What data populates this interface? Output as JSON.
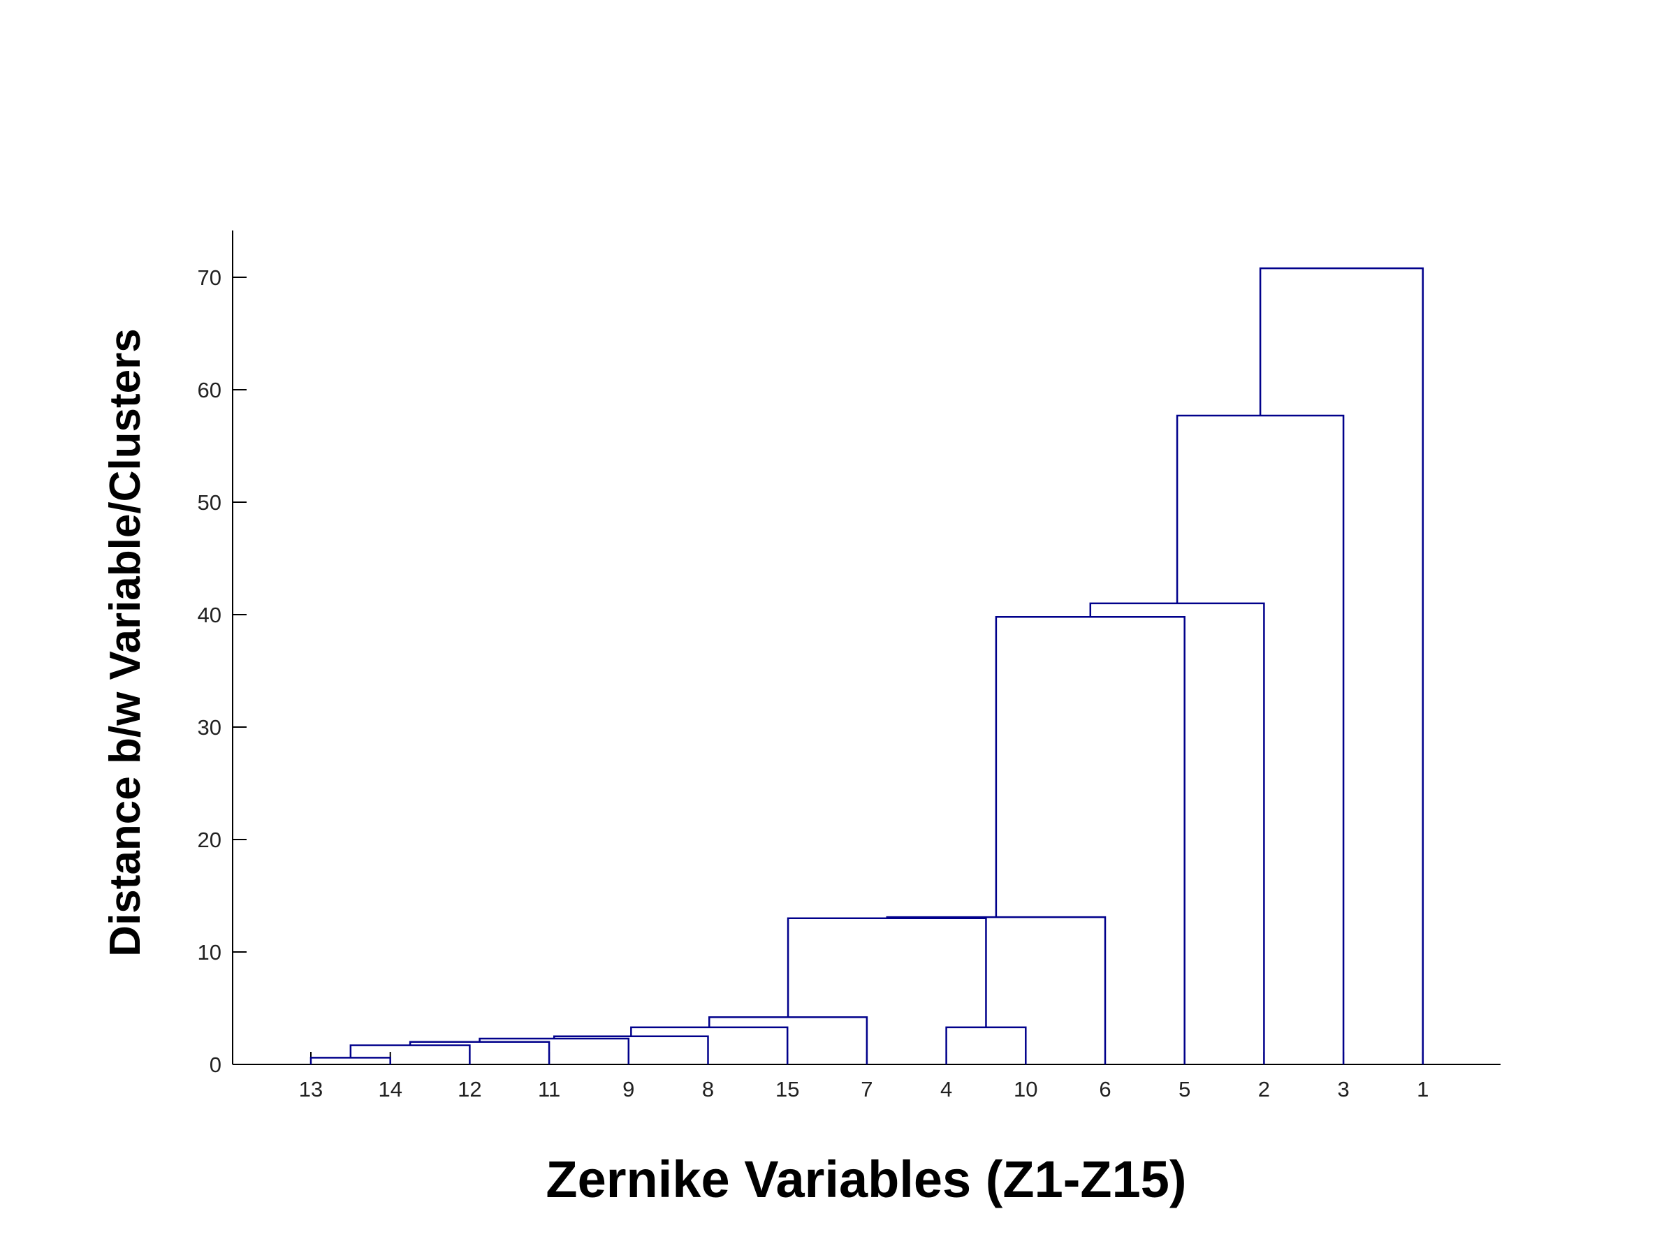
{
  "chart_data": {
    "type": "dendrogram",
    "title": "",
    "xlabel": "Zernike Variables (Z1-Z15)",
    "ylabel": "Distance b/w Variable/Clusters",
    "ylim": [
      0,
      74
    ],
    "yticks": [
      0,
      10,
      20,
      30,
      40,
      50,
      60,
      70
    ],
    "leaf_order": [
      "13",
      "14",
      "12",
      "11",
      "9",
      "8",
      "15",
      "7",
      "4",
      "10",
      "6",
      "5",
      "2",
      "3",
      "1"
    ],
    "merges": [
      {
        "left": "13",
        "right": "14",
        "height": 0.6
      },
      {
        "left": "(13,14)",
        "right": "12",
        "height": 1.7
      },
      {
        "left": "(13,14,12)",
        "right": "11",
        "height": 2.0
      },
      {
        "left": "(13,14,12,11)",
        "right": "9",
        "height": 2.3
      },
      {
        "left": "(13,14,12,11,9)",
        "right": "8",
        "height": 2.5
      },
      {
        "left": "(13..8)",
        "right": "15",
        "height": 3.3
      },
      {
        "left": "(13..15)",
        "right": "7",
        "height": 4.2
      },
      {
        "left": "4",
        "right": "10",
        "height": 3.3
      },
      {
        "left": "(13..7)",
        "right": "(4,10)",
        "height": 13.0
      },
      {
        "left": "(13..10)",
        "right": "6",
        "height": 13.1
      },
      {
        "left": "(13..6)",
        "right": "5",
        "height": 39.8
      },
      {
        "left": "(13..5)",
        "right": "2",
        "height": 41.0
      },
      {
        "left": "(13..2)",
        "right": "3",
        "height": 57.7
      },
      {
        "left": "(13..3)",
        "right": "1",
        "height": 70.8
      }
    ],
    "line_color": "#00008B",
    "grid": false
  }
}
